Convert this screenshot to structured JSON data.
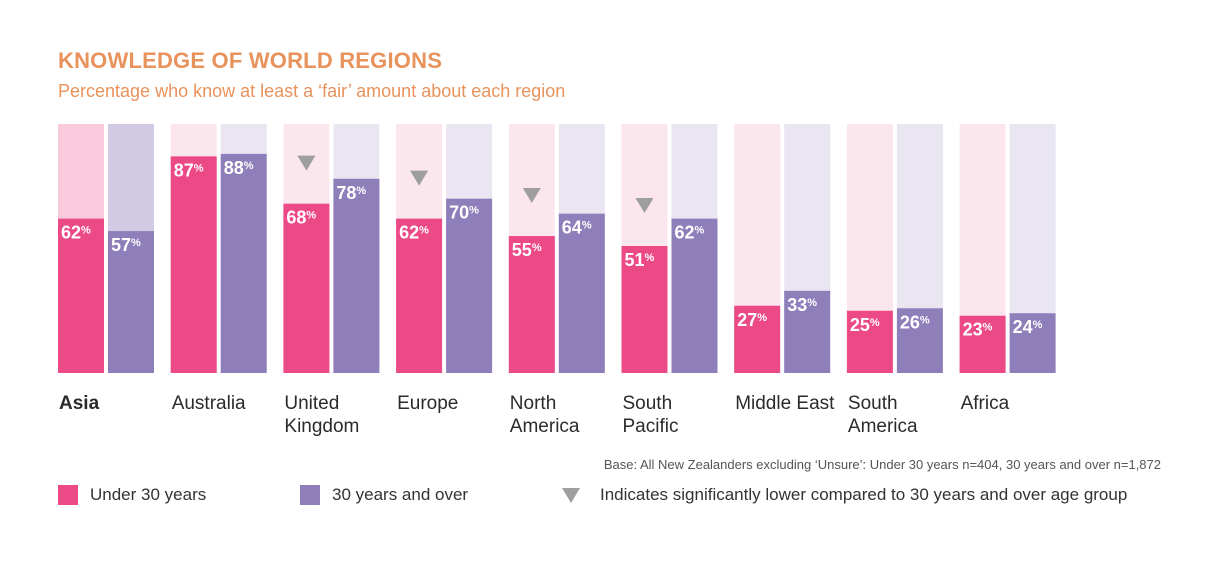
{
  "chart_data": {
    "type": "bar",
    "title": "KNOWLEDGE OF WORLD REGIONS",
    "subtitle": "Percentage who know at least a ‘fair’ amount about each region",
    "categories": [
      "Asia",
      "Australia",
      "United Kingdom",
      "Europe",
      "North America",
      "South Pacific",
      "Middle East",
      "South America",
      "Africa"
    ],
    "series": [
      {
        "name": "Under 30 years",
        "values": [
          62,
          87,
          68,
          62,
          55,
          51,
          27,
          25,
          23
        ],
        "color": "#EC4A86"
      },
      {
        "name": "30 years and over",
        "values": [
          57,
          88,
          78,
          70,
          64,
          62,
          33,
          26,
          24
        ],
        "color": "#8E7EBA"
      }
    ],
    "significantly_lower": [
      false,
      false,
      true,
      true,
      true,
      true,
      false,
      false,
      false
    ],
    "value_suffix": "%",
    "ylim": [
      0,
      100
    ],
    "highlighted_category": "Asia",
    "highlight_colors": {
      "under30_bg": "#F8CADB",
      "over30_bg": "#D2C9E5"
    },
    "default_bg_colors": {
      "under30_bg": "#FCE6EE",
      "over30_bg": "#E9E6F2"
    },
    "label_color": "#ffffff",
    "marker_color": "#9e9e9e"
  },
  "base_note": "Base: All New Zealanders excluding ‘Unsure’: Under 30 years n=404, 30 years and over n=1,872",
  "legend": {
    "under30": "Under 30 years",
    "over30": "30 years and over",
    "marker": "Indicates significantly lower compared to 30 years and over age group"
  }
}
